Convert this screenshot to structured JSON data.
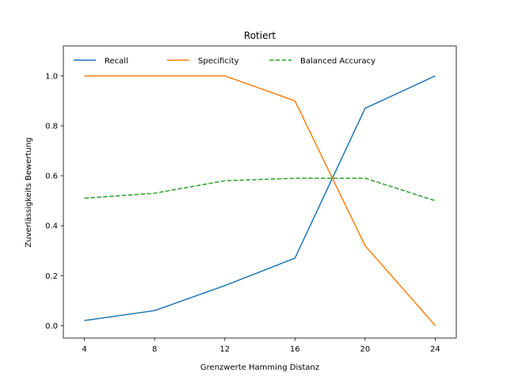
{
  "chart_data": {
    "type": "line",
    "title": "Rotiert",
    "xlabel": "Grenzwerte Hamming Distanz",
    "ylabel": "Zuverlässigkeits Bewertung",
    "x": [
      4,
      8,
      12,
      16,
      20,
      24
    ],
    "x_tick_labels": [
      "4",
      "8",
      "12",
      "16",
      "20",
      "24"
    ],
    "y_tick_labels": [
      "0.0",
      "0.2",
      "0.4",
      "0.6",
      "0.8",
      "1.0"
    ],
    "y_ticks": [
      0.0,
      0.2,
      0.4,
      0.6,
      0.8,
      1.0
    ],
    "xlim": [
      2.8,
      25.2
    ],
    "ylim": [
      -0.05,
      1.12
    ],
    "grid": false,
    "legend_position": "top, horizontal",
    "series": [
      {
        "name": "Recall",
        "values": [
          0.02,
          0.06,
          0.16,
          0.27,
          0.87,
          1.0
        ],
        "color": "#1f77b4",
        "dash": "solid"
      },
      {
        "name": "Specificity",
        "values": [
          1.0,
          1.0,
          1.0,
          0.9,
          0.32,
          0.0
        ],
        "color": "#ff7f0e",
        "dash": "solid"
      },
      {
        "name": "Balanced Accuracy",
        "values": [
          0.51,
          0.53,
          0.58,
          0.59,
          0.59,
          0.5
        ],
        "color": "#2ca02c",
        "dash": "dashed"
      }
    ]
  }
}
